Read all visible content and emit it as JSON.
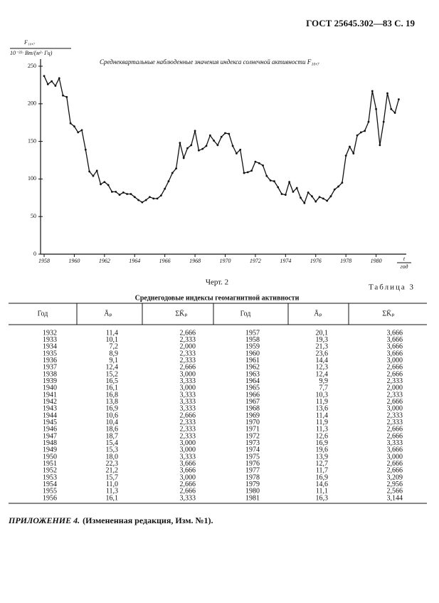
{
  "header": "ГОСТ 25645.302—83 С. 19",
  "chart_data": {
    "type": "line",
    "title": "Среднеквартальные наблюденные значения индекса солнечной активности F₁₀,₇",
    "ylabel_top": "F₁₀,₇",
    "ylabel_bottom": "10⁻²²· Вт/(м²· Гц)",
    "xlabel_top": "t",
    "xlabel_bottom": "год",
    "color": "#111111",
    "x": [
      1958,
      1958.25,
      1958.5,
      1958.75,
      1959,
      1959.25,
      1959.5,
      1959.75,
      1960,
      1960.25,
      1960.5,
      1960.75,
      1961,
      1961.25,
      1961.5,
      1961.75,
      1962,
      1962.25,
      1962.5,
      1962.75,
      1963,
      1963.25,
      1963.5,
      1963.75,
      1964,
      1964.25,
      1964.5,
      1964.75,
      1965,
      1965.25,
      1965.5,
      1965.75,
      1966,
      1966.25,
      1966.5,
      1966.75,
      1967,
      1967.25,
      1967.5,
      1967.75,
      1968,
      1968.25,
      1968.5,
      1968.75,
      1969,
      1969.25,
      1969.5,
      1969.75,
      1970,
      1970.25,
      1970.5,
      1970.75,
      1971,
      1971.25,
      1971.5,
      1971.75,
      1972,
      1972.25,
      1972.5,
      1972.75,
      1973,
      1973.25,
      1973.5,
      1973.75,
      1974,
      1974.25,
      1974.5,
      1974.75,
      1975,
      1975.25,
      1975.5,
      1975.75,
      1976,
      1976.25,
      1976.5,
      1976.75,
      1977,
      1977.25,
      1977.5,
      1977.75,
      1978,
      1978.25,
      1978.5,
      1978.75,
      1979,
      1979.25,
      1979.5,
      1979.75,
      1980,
      1980.25,
      1980.5,
      1980.75,
      1981,
      1981.25,
      1981.5
    ],
    "values": [
      237,
      226,
      230,
      224,
      234,
      211,
      209,
      174,
      170,
      162,
      165,
      139,
      110,
      104,
      111,
      93,
      96,
      92,
      83,
      83,
      79,
      82,
      80,
      80,
      76,
      72,
      69,
      72,
      76,
      74,
      74,
      78,
      87,
      97,
      108,
      114,
      148,
      128,
      141,
      145,
      164,
      138,
      140,
      144,
      158,
      151,
      145,
      156,
      161,
      160,
      144,
      134,
      139,
      108,
      109,
      111,
      123,
      121,
      118,
      104,
      98,
      97,
      89,
      80,
      79,
      96,
      83,
      88,
      75,
      68,
      82,
      77,
      70,
      76,
      74,
      71,
      77,
      86,
      90,
      95,
      131,
      143,
      134,
      158,
      162,
      164,
      176,
      217,
      193,
      145,
      176,
      214,
      193,
      188,
      206
    ],
    "xlim": [
      1958,
      1982
    ],
    "xticks": [
      1958,
      1960,
      1962,
      1964,
      1966,
      1968,
      1970,
      1972,
      1974,
      1976,
      1978,
      1980
    ],
    "ylim": [
      0,
      250
    ],
    "yticks": [
      0,
      50,
      100,
      150,
      200,
      250
    ],
    "grid": false
  },
  "caption": "Черт. 2",
  "table_label": "Таблица 3",
  "table": {
    "title": "Среднегодовые индексы геомагнитной активности",
    "columns": [
      "Год",
      "Āₚ",
      "ΣK̄ₚ",
      "Год",
      "Āₚ",
      "ΣK̄ₚ"
    ],
    "rows": [
      [
        "1932",
        "11,4",
        "2,666",
        "1957",
        "20,1",
        "3,666"
      ],
      [
        "1933",
        "10,1",
        "2,333",
        "1958",
        "19,3",
        "3,666"
      ],
      [
        "1934",
        "7,2",
        "2,000",
        "1959",
        "21,3",
        "3,666"
      ],
      [
        "1935",
        "8,9",
        "2,333",
        "1960",
        "23,6",
        "3,666"
      ],
      [
        "1936",
        "9,1",
        "2,333",
        "1961",
        "14,4",
        "3,000"
      ],
      [
        "1937",
        "12,4",
        "2,666",
        "1962",
        "12,3",
        "2,666"
      ],
      [
        "1938",
        "15,2",
        "3,000",
        "1963",
        "12,4",
        "2,666"
      ],
      [
        "1939",
        "16,5",
        "3,333",
        "1964",
        "9,9",
        "2,333"
      ],
      [
        "1940",
        "16,1",
        "3,000",
        "1965",
        "7,7",
        "2,000"
      ],
      [
        "1941",
        "16,8",
        "3,333",
        "1966",
        "10,3",
        "2,333"
      ],
      [
        "1942",
        "13,8",
        "3,333",
        "1967",
        "11,9",
        "2,666"
      ],
      [
        "1943",
        "16,9",
        "3,333",
        "1968",
        "13,6",
        "3,000"
      ],
      [
        "1944",
        "10,6",
        "2,666",
        "1969",
        "11,4",
        "2,333"
      ],
      [
        "1945",
        "10,4",
        "2,333",
        "1970",
        "11,9",
        "2,333"
      ],
      [
        "1946",
        "18,6",
        "2,333",
        "1971",
        "11,3",
        "2,666"
      ],
      [
        "1947",
        "18,7",
        "2,333",
        "1972",
        "12,6",
        "2,666"
      ],
      [
        "1948",
        "15,4",
        "3,000",
        "1973",
        "16,9",
        "3,333"
      ],
      [
        "1949",
        "15,3",
        "3,000",
        "1974",
        "19,6",
        "3,666"
      ],
      [
        "1950",
        "18,0",
        "3,333",
        "1975",
        "13,9",
        "3,000"
      ],
      [
        "1951",
        "22,3",
        "3,666",
        "1976",
        "12,7",
        "2,666"
      ],
      [
        "1952",
        "21,2",
        "3,666",
        "1977",
        "11,7",
        "2,666"
      ],
      [
        "1953",
        "15,7",
        "3,000",
        "1978",
        "16,9",
        "3,209"
      ],
      [
        "1954",
        "11,0",
        "2,666",
        "1979",
        "14,6",
        "2,956"
      ],
      [
        "1955",
        "11,3",
        "2,666",
        "1980",
        "11,1",
        "2,566"
      ],
      [
        "1956",
        "16,1",
        "3,333",
        "1981",
        "16,3",
        "3,144"
      ]
    ]
  },
  "footer_bold": "ПРИЛОЖЕНИЕ 4.",
  "footer_rest": "(Измененная редакция, Изм. №1)."
}
